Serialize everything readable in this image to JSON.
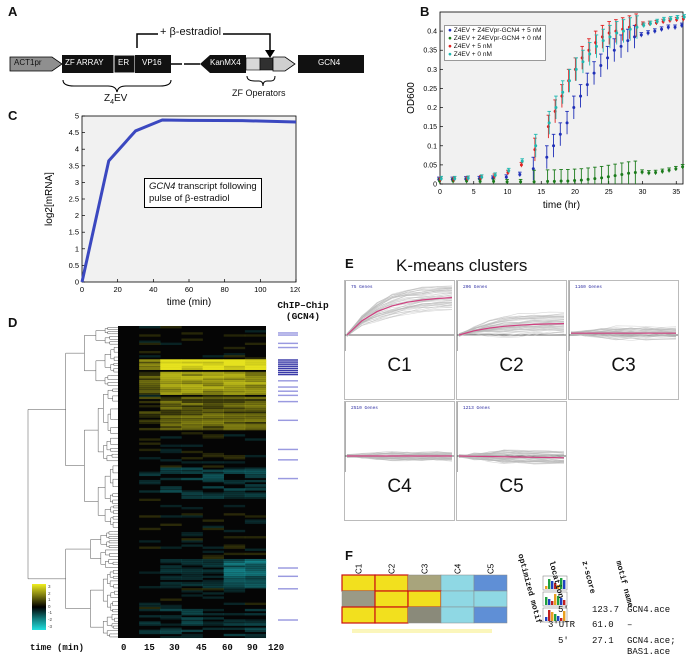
{
  "panels": {
    "a": {
      "letter": "A",
      "stimulus": "+ β-estradiol",
      "construct_left": [
        "ACT1pr",
        "ZF ARRAY",
        "ER",
        "VP16"
      ],
      "construct_left_label": "Z",
      "construct_left_label_sub": "4",
      "construct_left_label_tail": "EV",
      "construct_right": [
        "KanMX4",
        "GCN4"
      ],
      "operators_label": "ZF Operators"
    },
    "b": {
      "letter": "B",
      "legend": [
        {
          "label": "Z4EV + Z4EVpr-GCN4 + 5 nM",
          "color": "#1f2fb8"
        },
        {
          "label": "Z4EV + Z4EVpr-GCN4 + 0 nM",
          "color": "#1a7a1a"
        },
        {
          "label": "Z4EV + 5 nM",
          "color": "#e02020"
        },
        {
          "label": "Z4EV + 0 nM",
          "color": "#20b8b0"
        }
      ],
      "ylabel": "OD600",
      "xlabel": "time (hr)"
    },
    "c": {
      "letter": "C",
      "ylabel": "log2[mRNA]",
      "xlabel": "time (min)",
      "annotation_italic": "GCN4",
      "annotation_rest": " transcript following",
      "annotation_line2": "pulse of β-estradiol"
    },
    "d": {
      "letter": "D",
      "chip_title_1": "ChIP–Chip",
      "chip_title_2": "(GCN4)",
      "time_label": "time (min)",
      "time_ticks": [
        "0",
        "15",
        "30",
        "45",
        "60",
        "90",
        "120"
      ],
      "colorbar_labels": [
        "3",
        "2",
        "1",
        "0",
        "-1",
        "-2",
        "-3"
      ]
    },
    "e": {
      "letter": "E",
      "title": "K-means clusters",
      "clusters": [
        {
          "name": "C1",
          "count": "75 Genes"
        },
        {
          "name": "C2",
          "count": "206 Genes"
        },
        {
          "name": "C3",
          "count": "1160 Genes"
        },
        {
          "name": "C4",
          "count": "2510 Genes"
        },
        {
          "name": "C5",
          "count": "1213 Genes"
        }
      ]
    },
    "f": {
      "letter": "F",
      "col_labels": [
        "C1",
        "C2",
        "C3",
        "C4",
        "C5"
      ],
      "headers": [
        "optimized motif",
        "location",
        "z-score",
        "motif name"
      ],
      "rows": [
        {
          "location": "5'",
          "z": "123.7",
          "name": "GCN4.ace",
          "cells": [
            "#f2e01e",
            "#f2e01e",
            "#a8a47c",
            "#8fd8e4",
            "#5f8fd6"
          ]
        },
        {
          "location": "3'UTR",
          "z": "61.0",
          "name": "–",
          "cells": [
            "#9a9a86",
            "#f2e01e",
            "#f2e01e",
            "#8fd8e4",
            "#8fd8e4"
          ]
        },
        {
          "location": "5'",
          "z": "27.1",
          "name": "GCN4.ace;",
          "name2": "BAS1.ace",
          "cells": [
            "#f2e01e",
            "#f2e01e",
            "#8a8a7a",
            "#8fd8e4",
            "#5f8fd6"
          ]
        }
      ]
    }
  },
  "chart_data": [
    {
      "type": "line",
      "id": "panel-b",
      "xlabel": "time (hr)",
      "ylabel": "OD600",
      "xlim": [
        0,
        36
      ],
      "ylim": [
        0,
        0.45
      ],
      "xticks": [
        0,
        5,
        10,
        15,
        20,
        25,
        30,
        35
      ],
      "yticks": [
        0,
        0.05,
        0.1,
        0.15,
        0.2,
        0.25,
        0.3,
        0.35,
        0.4
      ],
      "x": [
        0,
        2,
        4,
        6,
        8,
        10,
        12,
        14,
        16,
        17,
        18,
        19,
        20,
        21,
        22,
        23,
        24,
        25,
        26,
        27,
        28,
        29,
        30,
        31,
        32,
        33,
        34,
        35,
        36
      ],
      "series": [
        {
          "name": "Z4EV + Z4EVpr-GCN4 + 5 nM",
          "color": "#1f2fb8",
          "values": [
            0.012,
            0.012,
            0.013,
            0.014,
            0.015,
            0.018,
            0.025,
            0.04,
            0.07,
            0.1,
            0.13,
            0.16,
            0.2,
            0.23,
            0.26,
            0.29,
            0.31,
            0.33,
            0.35,
            0.36,
            0.375,
            0.385,
            0.39,
            0.395,
            0.4,
            0.405,
            0.41,
            0.41,
            0.415
          ]
        },
        {
          "name": "Z4EV + Z4EVpr-GCN4 + 0 nM",
          "color": "#1a7a1a",
          "values": [
            0.008,
            0.008,
            0.008,
            0.007,
            0.007,
            0.006,
            0.006,
            0.006,
            0.007,
            0.007,
            0.008,
            0.008,
            0.009,
            0.01,
            0.012,
            0.014,
            0.016,
            0.019,
            0.022,
            0.025,
            0.028,
            0.03,
            0.031,
            0.029,
            0.03,
            0.033,
            0.036,
            0.04,
            0.045
          ]
        },
        {
          "name": "Z4EV + 5 nM",
          "color": "#e02020",
          "values": [
            0.012,
            0.012,
            0.014,
            0.016,
            0.02,
            0.03,
            0.05,
            0.09,
            0.15,
            0.19,
            0.23,
            0.27,
            0.3,
            0.33,
            0.35,
            0.37,
            0.385,
            0.395,
            0.4,
            0.405,
            0.41,
            0.415,
            0.418,
            0.42,
            0.422,
            0.425,
            0.428,
            0.43,
            0.432
          ]
        },
        {
          "name": "Z4EV + 0 nM",
          "color": "#20b8b0",
          "values": [
            0.014,
            0.014,
            0.015,
            0.018,
            0.023,
            0.035,
            0.06,
            0.1,
            0.16,
            0.2,
            0.24,
            0.27,
            0.3,
            0.32,
            0.34,
            0.36,
            0.375,
            0.385,
            0.395,
            0.4,
            0.405,
            0.41,
            0.415,
            0.42,
            0.425,
            0.43,
            0.432,
            0.435,
            0.437
          ]
        }
      ]
    },
    {
      "type": "line",
      "id": "panel-c",
      "xlabel": "time (min)",
      "ylabel": "log2[mRNA]",
      "xlim": [
        0,
        120
      ],
      "ylim": [
        0,
        5
      ],
      "xticks": [
        0,
        20,
        40,
        60,
        80,
        100,
        120
      ],
      "yticks": [
        0,
        0.5,
        1,
        1.5,
        2,
        2.5,
        3,
        3.5,
        4,
        4.5,
        5
      ],
      "x": [
        0,
        15,
        30,
        45,
        60,
        90,
        120
      ],
      "series": [
        {
          "name": "GCN4",
          "color": "#3b48c0",
          "values": [
            0,
            3.65,
            4.55,
            4.88,
            4.87,
            4.86,
            4.82
          ]
        }
      ]
    }
  ]
}
